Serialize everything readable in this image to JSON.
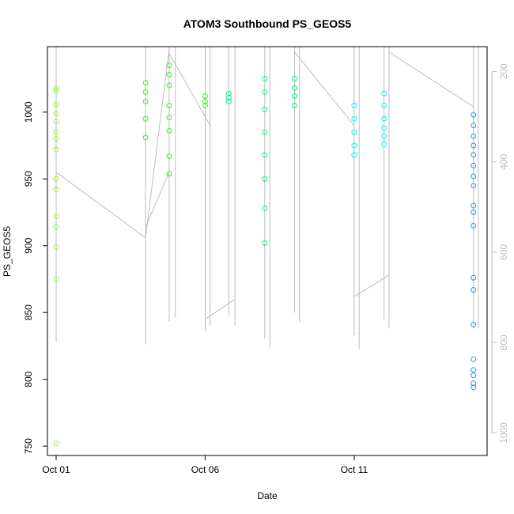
{
  "chart_data": {
    "type": "scatter",
    "title": "ATOM3 Southbound PS_GEOS5",
    "xlabel": "Date",
    "ylabel": "PS_GEOS5",
    "x_ticks": [
      "Oct 01",
      "Oct 06",
      "Oct 11"
    ],
    "y_ticks": [
      "750",
      "800",
      "850",
      "900",
      "950",
      "1000"
    ],
    "y2_ticks": [
      "200",
      "400",
      "600",
      "800",
      "1000"
    ],
    "xlim": [
      "2016-09-30T17:00",
      "2016-10-15T11:00"
    ],
    "ylim": [
      743,
      1049
    ],
    "y2lim": [
      1050,
      145
    ],
    "grid": false,
    "legend": "none",
    "colors": {
      "points_by_time": [
        "#9cf53a",
        "#35f51e",
        "#00f57a",
        "#00f5f5",
        "#2797f2"
      ],
      "altitude_trace": "#bdbdbd",
      "right_axis": "#bdbdbd"
    },
    "series": [
      {
        "values": [
          {
            "x": "2016-10-01T00:00",
            "y": 1018
          },
          {
            "x": "2016-10-01T00:00",
            "y": 1016
          },
          {
            "x": "2016-10-01T00:00",
            "y": 1006
          },
          {
            "x": "2016-10-01T00:00",
            "y": 999
          },
          {
            "x": "2016-10-01T00:00",
            "y": 993
          },
          {
            "x": "2016-10-01T00:00",
            "y": 985
          },
          {
            "x": "2016-10-01T00:00",
            "y": 980
          },
          {
            "x": "2016-10-01T00:00",
            "y": 972
          },
          {
            "x": "2016-10-01T00:00",
            "y": 950
          },
          {
            "x": "2016-10-01T00:00",
            "y": 942
          },
          {
            "x": "2016-10-01T00:00",
            "y": 922
          },
          {
            "x": "2016-10-01T00:00",
            "y": 914
          },
          {
            "x": "2016-10-01T00:00",
            "y": 899
          },
          {
            "x": "2016-10-01T00:00",
            "y": 875
          },
          {
            "x": "2016-10-01T00:00",
            "y": 752
          },
          {
            "x": "2016-10-04T00:00",
            "y": 1022
          },
          {
            "x": "2016-10-04T00:00",
            "y": 1015
          },
          {
            "x": "2016-10-04T00:00",
            "y": 1008
          },
          {
            "x": "2016-10-04T00:00",
            "y": 995
          },
          {
            "x": "2016-10-04T00:00",
            "y": 981
          },
          {
            "x": "2016-10-04T19:00",
            "y": 1035
          },
          {
            "x": "2016-10-04T19:00",
            "y": 1028
          },
          {
            "x": "2016-10-04T19:00",
            "y": 1020
          },
          {
            "x": "2016-10-04T19:00",
            "y": 1005
          },
          {
            "x": "2016-10-04T19:00",
            "y": 996
          },
          {
            "x": "2016-10-04T19:00",
            "y": 986
          },
          {
            "x": "2016-10-04T19:00",
            "y": 967
          },
          {
            "x": "2016-10-04T19:00",
            "y": 954
          },
          {
            "x": "2016-10-06T00:00",
            "y": 1012
          },
          {
            "x": "2016-10-06T00:00",
            "y": 1008
          },
          {
            "x": "2016-10-06T00:00",
            "y": 1005
          },
          {
            "x": "2016-10-06T19:00",
            "y": 1014
          },
          {
            "x": "2016-10-06T19:00",
            "y": 1011
          },
          {
            "x": "2016-10-06T19:00",
            "y": 1008
          },
          {
            "x": "2016-10-08T00:00",
            "y": 1025
          },
          {
            "x": "2016-10-08T00:00",
            "y": 1015
          },
          {
            "x": "2016-10-08T00:00",
            "y": 1002
          },
          {
            "x": "2016-10-08T00:00",
            "y": 985
          },
          {
            "x": "2016-10-08T00:00",
            "y": 968
          },
          {
            "x": "2016-10-08T00:00",
            "y": 950
          },
          {
            "x": "2016-10-08T00:00",
            "y": 928
          },
          {
            "x": "2016-10-08T00:00",
            "y": 902
          },
          {
            "x": "2016-10-09T00:00",
            "y": 1025
          },
          {
            "x": "2016-10-09T00:00",
            "y": 1018
          },
          {
            "x": "2016-10-09T00:00",
            "y": 1012
          },
          {
            "x": "2016-10-09T00:00",
            "y": 1005
          },
          {
            "x": "2016-10-11T00:00",
            "y": 1005
          },
          {
            "x": "2016-10-11T00:00",
            "y": 995
          },
          {
            "x": "2016-10-11T00:00",
            "y": 985
          },
          {
            "x": "2016-10-11T00:00",
            "y": 975
          },
          {
            "x": "2016-10-11T00:00",
            "y": 968
          },
          {
            "x": "2016-10-12T00:00",
            "y": 1014
          },
          {
            "x": "2016-10-12T00:00",
            "y": 1005
          },
          {
            "x": "2016-10-12T00:00",
            "y": 995
          },
          {
            "x": "2016-10-12T00:00",
            "y": 988
          },
          {
            "x": "2016-10-12T00:00",
            "y": 982
          },
          {
            "x": "2016-10-12T00:00",
            "y": 976
          },
          {
            "x": "2016-10-15T00:00",
            "y": 998
          },
          {
            "x": "2016-10-15T00:00",
            "y": 990
          },
          {
            "x": "2016-10-15T00:00",
            "y": 982
          },
          {
            "x": "2016-10-15T00:00",
            "y": 975
          },
          {
            "x": "2016-10-15T00:00",
            "y": 968
          },
          {
            "x": "2016-10-15T00:00",
            "y": 960
          },
          {
            "x": "2016-10-15T00:00",
            "y": 952
          },
          {
            "x": "2016-10-15T00:00",
            "y": 945
          },
          {
            "x": "2016-10-15T00:00",
            "y": 930
          },
          {
            "x": "2016-10-15T00:00",
            "y": 925
          },
          {
            "x": "2016-10-15T00:00",
            "y": 915
          },
          {
            "x": "2016-10-15T00:00",
            "y": 876
          },
          {
            "x": "2016-10-15T00:00",
            "y": 867
          },
          {
            "x": "2016-10-15T00:00",
            "y": 841
          },
          {
            "x": "2016-10-15T00:00",
            "y": 815
          },
          {
            "x": "2016-10-15T00:00",
            "y": 807
          },
          {
            "x": "2016-10-15T00:00",
            "y": 803
          },
          {
            "x": "2016-10-15T00:00",
            "y": 797
          },
          {
            "x": "2016-10-15T00:00",
            "y": 794
          }
        ]
      }
    ]
  }
}
